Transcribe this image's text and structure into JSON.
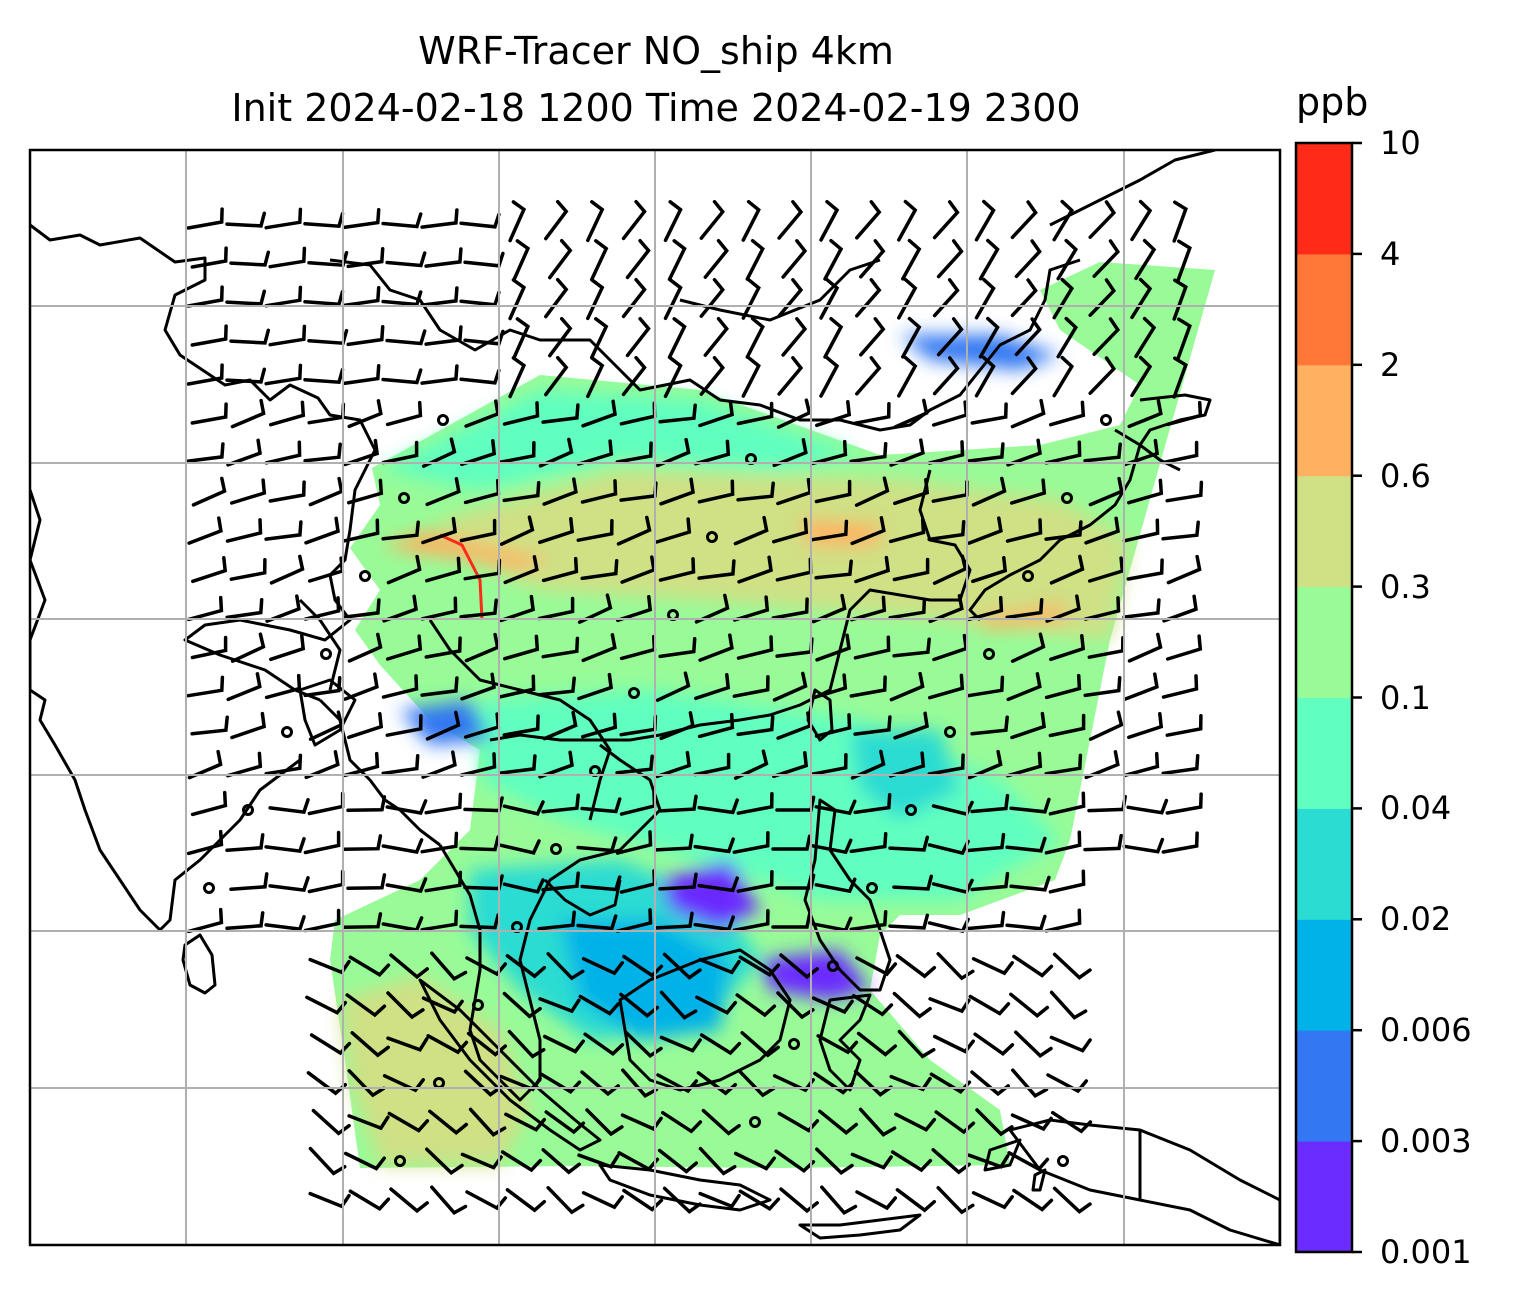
{
  "title": {
    "line1": "WRF-Tracer NO_ship 4km",
    "line2": "Init 2024-02-18 1200 Time 2024-02-19 2300"
  },
  "colorbar": {
    "unit": "ppb",
    "ticks": [
      "0.001",
      "0.003",
      "0.006",
      "0.02",
      "0.04",
      "0.1",
      "0.3",
      "0.6",
      "2",
      "4",
      "10"
    ],
    "colors": [
      "#6a2cff",
      "#3377f2",
      "#00b2e8",
      "#2bdcd2",
      "#60ffc0",
      "#98fb98",
      "#cfe085",
      "#ffb060",
      "#ff7838",
      "#ff2a18"
    ]
  },
  "map": {
    "gridlines": true,
    "coastlines": true,
    "wind_barbs": true
  }
}
